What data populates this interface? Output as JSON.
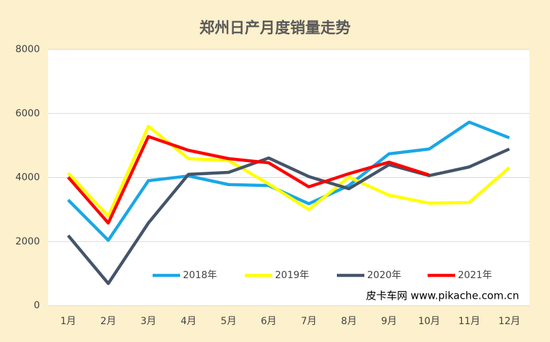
{
  "chart_data": {
    "type": "line",
    "title": "郑州日产月度销量走势",
    "categories": [
      "1月",
      "2月",
      "3月",
      "4月",
      "5月",
      "6月",
      "7月",
      "8月",
      "9月",
      "10月",
      "11月",
      "12月"
    ],
    "series": [
      {
        "name": "2018年",
        "color": "#1aa7e6",
        "values": [
          3300,
          2040,
          3900,
          4050,
          3780,
          3750,
          3180,
          3750,
          4740,
          4890,
          5730,
          5240
        ]
      },
      {
        "name": "2019年",
        "color": "#ffff00",
        "values": [
          4140,
          2790,
          5600,
          4590,
          4530,
          3800,
          3000,
          4010,
          3450,
          3200,
          3220,
          4310
        ]
      },
      {
        "name": "2020年",
        "color": "#44546a",
        "values": [
          2190,
          690,
          2580,
          4100,
          4160,
          4610,
          4030,
          3650,
          4400,
          4060,
          4330,
          4890
        ]
      },
      {
        "name": "2021年",
        "color": "#ff0000",
        "values": [
          4010,
          2580,
          5280,
          4850,
          4590,
          4460,
          3710,
          4120,
          4480,
          4080,
          null,
          null
        ]
      }
    ],
    "ylim": [
      0,
      8000
    ],
    "yticks": [
      0,
      2000,
      4000,
      6000,
      8000
    ],
    "grid": true,
    "legend": "lower center",
    "annotation": "皮卡车网  www.pikache.com.cn"
  }
}
